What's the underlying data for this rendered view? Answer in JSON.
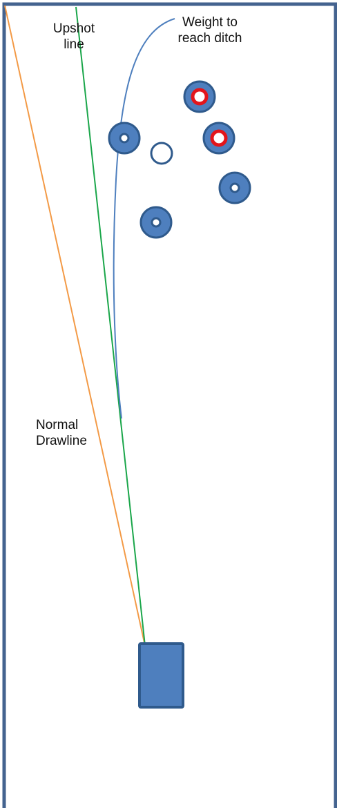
{
  "labels": {
    "upshot_line": {
      "line1": "Upshot",
      "line2": "line"
    },
    "weight_to_reach_ditch": {
      "line1": "Weight to",
      "line2": "reach ditch"
    },
    "normal_drawline": {
      "line1": "Normal",
      "line2": "Drawline"
    }
  },
  "colors": {
    "rink_border": "#44638f",
    "bowl_blue": "#4e7fbe",
    "bowl_outline": "#2f5a8c",
    "jack_outline": "#2f5a8c",
    "red_ring": "#e3151b",
    "upshot_line": "#1aa64a",
    "drawline": "#f39a46",
    "weight_curve": "#4e7fbe",
    "mat": "#4e7fbe"
  },
  "objects": {
    "bowls": [
      {
        "id": "bowl-left",
        "ring": "blue"
      },
      {
        "id": "bowl-top-red",
        "ring": "red"
      },
      {
        "id": "bowl-middle-red",
        "ring": "red"
      },
      {
        "id": "bowl-right",
        "ring": "blue"
      },
      {
        "id": "bowl-lower-left",
        "ring": "blue"
      }
    ],
    "jack": {
      "id": "jack"
    },
    "mat": {
      "id": "mat"
    }
  }
}
